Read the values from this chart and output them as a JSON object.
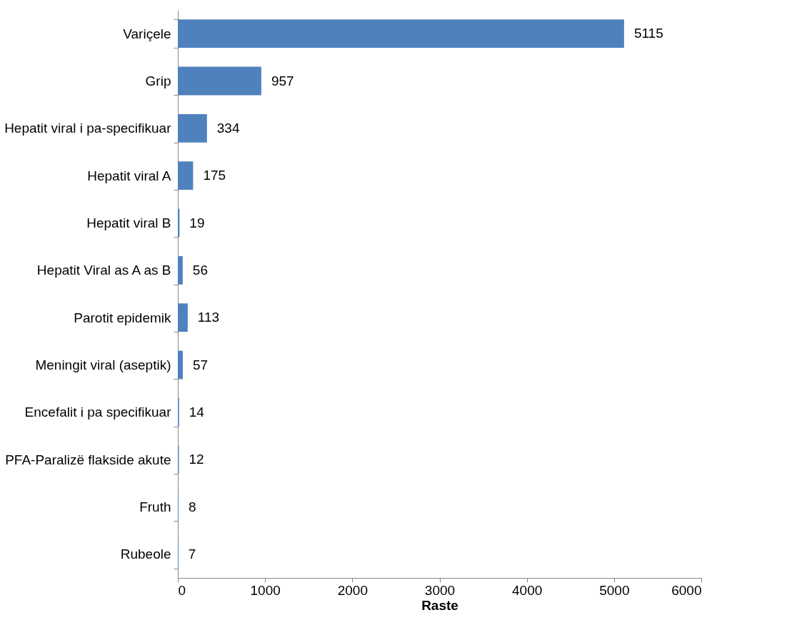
{
  "chart_data": {
    "type": "bar",
    "orientation": "horizontal",
    "xlabel": "Raste",
    "categories": [
      "Variçele",
      "Grip",
      "Hepatit viral i pa-specifikuar",
      "Hepatit viral A",
      "Hepatit viral B",
      "Hepatit Viral as A as B",
      "Parotit epidemik",
      "Meningit viral (aseptik)",
      "Encefalit i pa specifikuar",
      "PFA-Paralizë flakside akute",
      "Fruth",
      "Rubeole"
    ],
    "values": [
      5115,
      957,
      334,
      175,
      19,
      56,
      113,
      57,
      14,
      12,
      8,
      7
    ],
    "color": "#4f81bd",
    "xlim": [
      0,
      6000
    ],
    "xticks": [
      0,
      1000,
      2000,
      3000,
      4000,
      5000,
      6000
    ],
    "data_labels": true,
    "grid": false
  }
}
